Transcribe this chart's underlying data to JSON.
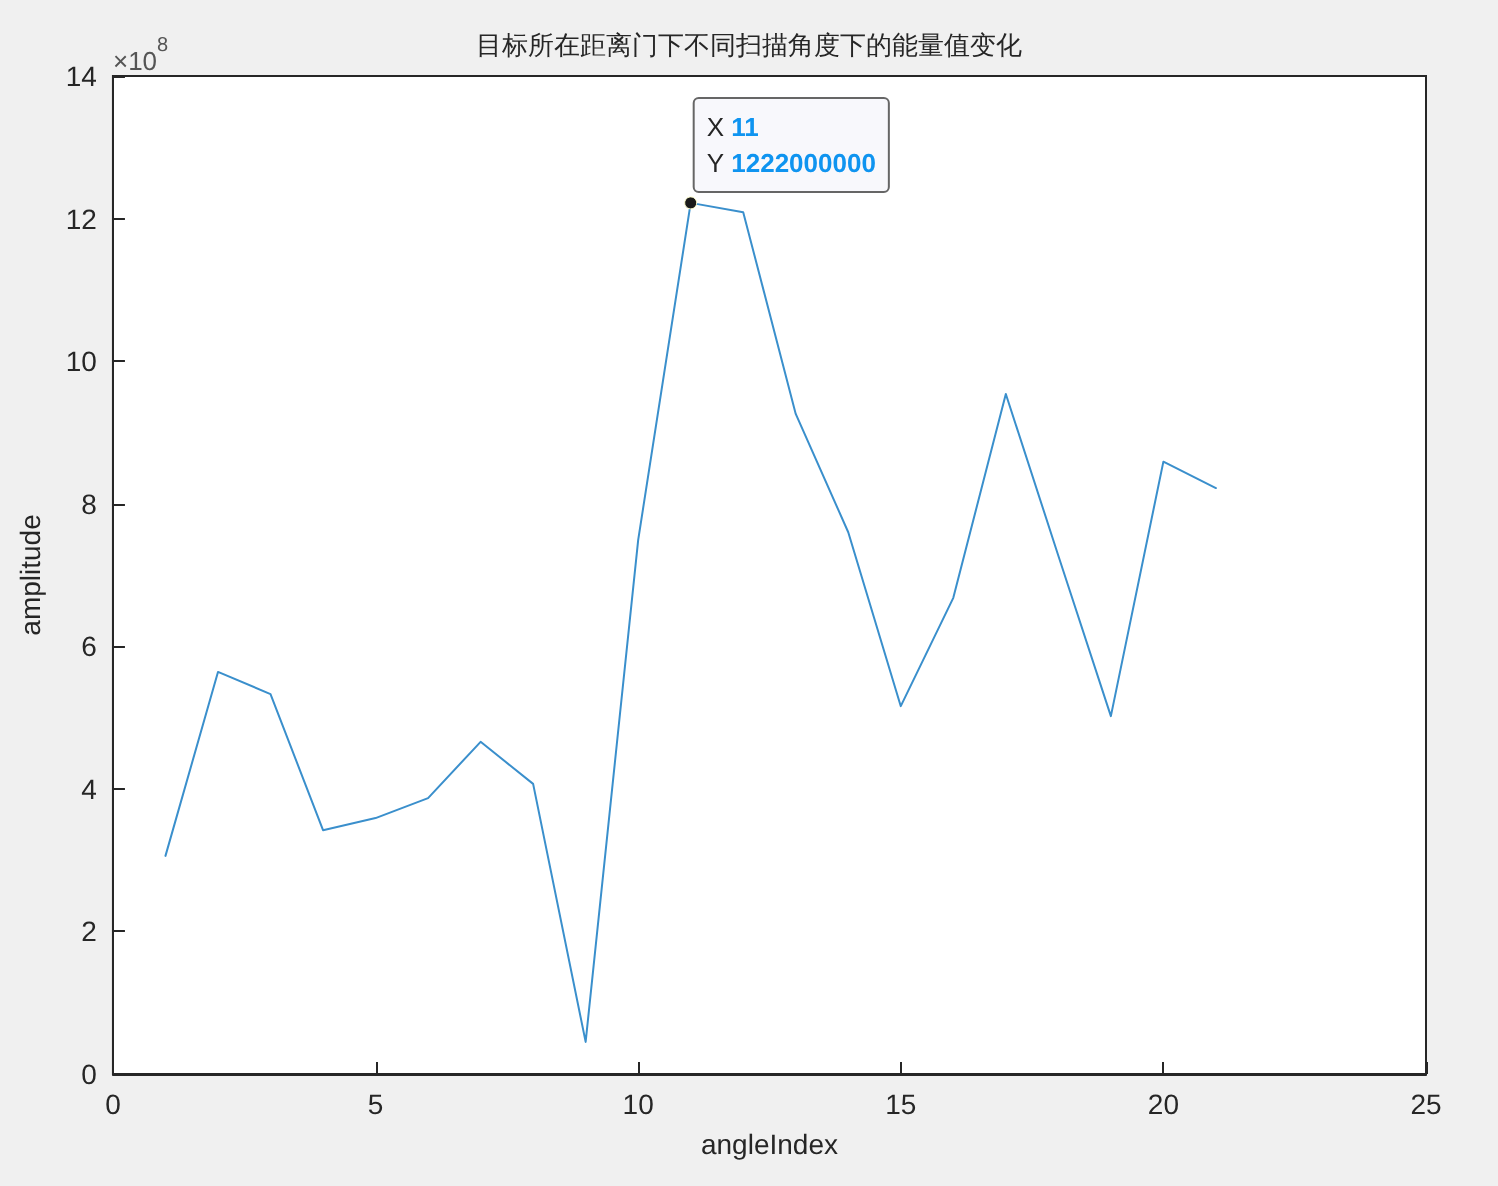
{
  "chart_data": {
    "type": "line",
    "title": "目标所在距离门下不同扫描角度下的能量值变化",
    "xlabel": "angleIndex",
    "ylabel": "amplitude",
    "x": [
      1,
      2,
      3,
      4,
      5,
      6,
      7,
      8,
      9,
      10,
      11,
      12,
      13,
      14,
      15,
      16,
      17,
      18,
      19,
      20,
      21
    ],
    "series": [
      {
        "color": "#3a8fcc",
        "values": [
          3.06,
          5.64,
          5.33,
          3.42,
          3.59,
          3.87,
          4.66,
          4.07,
          0.45,
          7.49,
          12.22,
          12.09,
          9.26,
          7.6,
          5.16,
          6.68,
          9.54,
          7.27,
          5.02,
          8.59,
          8.22
        ]
      }
    ],
    "xlim": [
      0,
      25
    ],
    "xticks": [
      0,
      5,
      10,
      15,
      20,
      25
    ],
    "ylim": [
      0,
      14
    ],
    "yticks": [
      0,
      2,
      4,
      6,
      8,
      10,
      12,
      14
    ],
    "annotations": [
      "×10$^{8}$",
      {
        "text": "X 11\nY 1222000000",
        "x": 11,
        "y": 12.22
      }
    ],
    "grid": false,
    "marker": "none",
    "line_style": "solid"
  }
}
